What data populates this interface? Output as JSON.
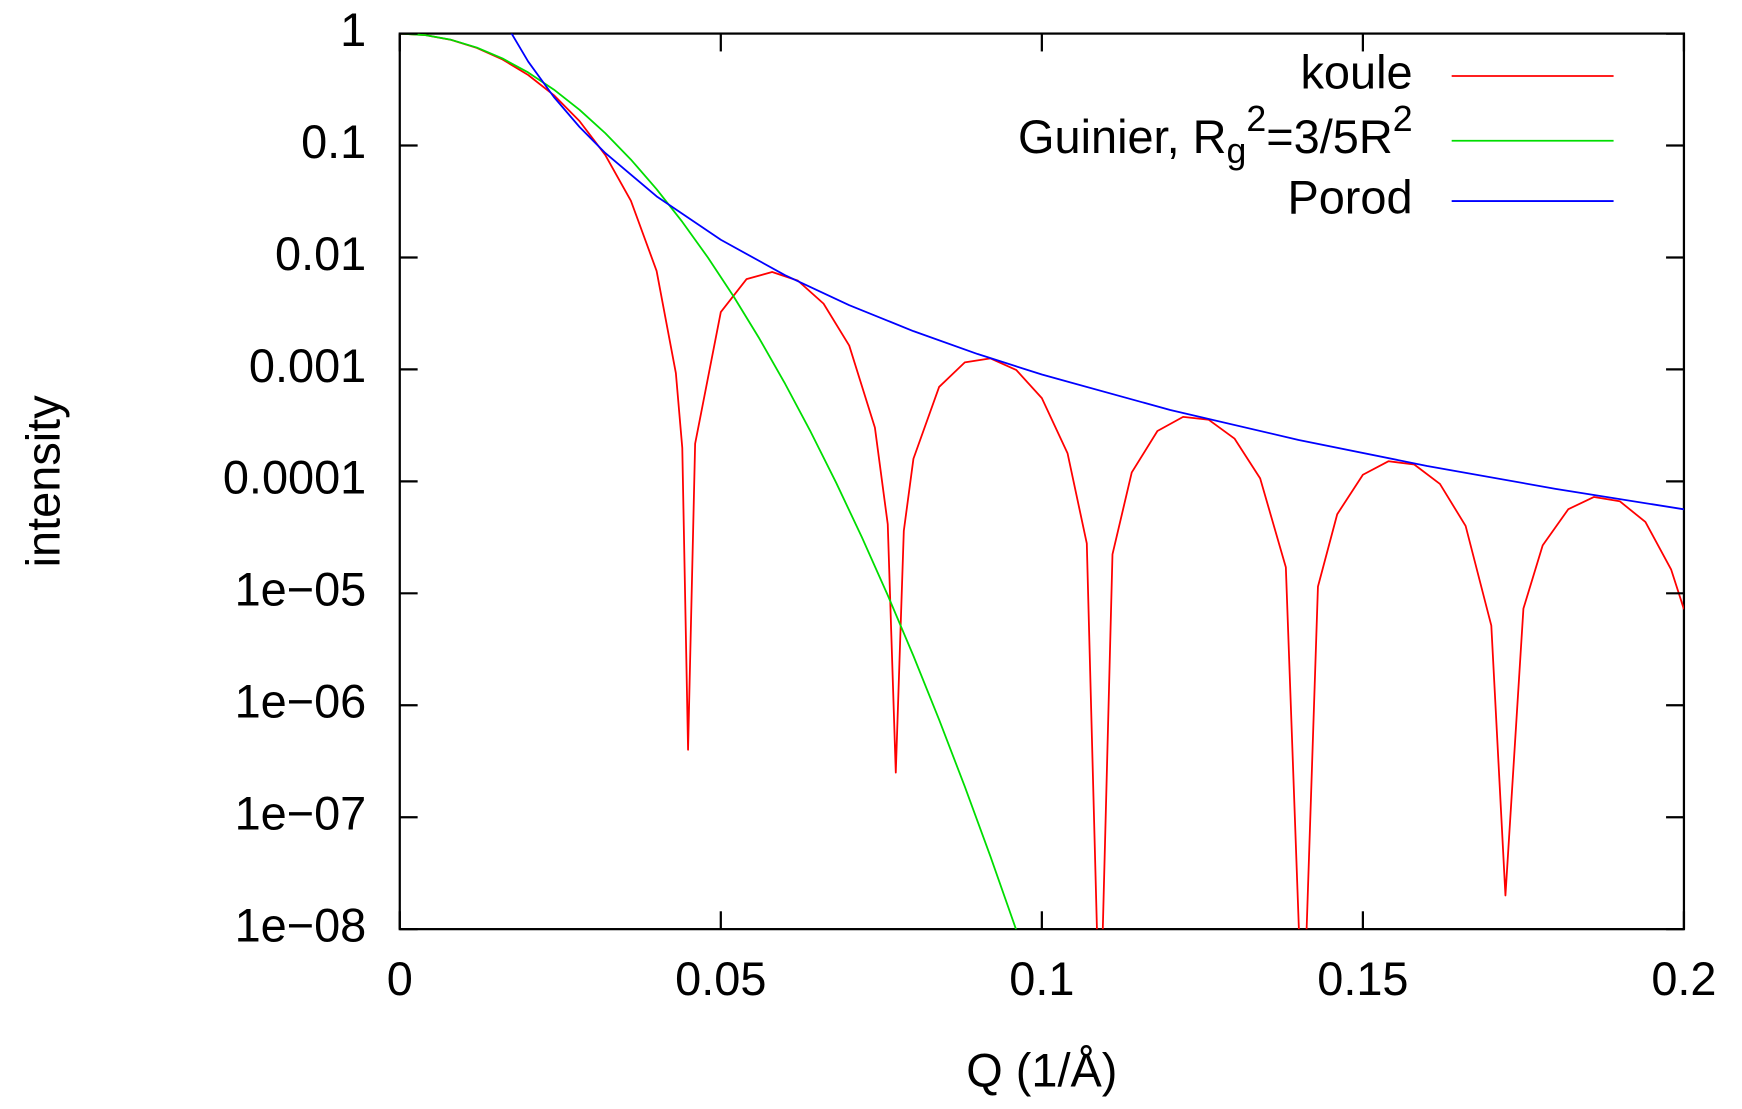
{
  "chart_data": {
    "type": "line",
    "xlabel": "Q (1/Å)",
    "ylabel": "intensity",
    "xlim": [
      0,
      0.2
    ],
    "xticks": [
      0,
      0.05,
      0.1,
      0.15,
      0.2
    ],
    "ylim": [
      1e-08,
      1
    ],
    "yticks": [
      {
        "value": 1e-08,
        "label": "1e−08"
      },
      {
        "value": 1e-07,
        "label": "1e−07"
      },
      {
        "value": 1e-06,
        "label": "1e−06"
      },
      {
        "value": 1e-05,
        "label": "1e−05"
      },
      0.0001,
      0.001,
      0.01,
      0.1,
      1
    ],
    "ylog": true,
    "grid": false,
    "legend": "top-right",
    "series": [
      {
        "name": "koule",
        "color": "#ff0000",
        "x": [
          0,
          0.004,
          0.008,
          0.012,
          0.016,
          0.02,
          0.024,
          0.028,
          0.032,
          0.036,
          0.04,
          0.043,
          0.044,
          0.0449,
          0.046,
          0.05,
          0.054,
          0.058,
          0.062,
          0.066,
          0.07,
          0.074,
          0.076,
          0.07725,
          0.0785,
          0.08,
          0.084,
          0.088,
          0.092,
          0.096,
          0.1,
          0.104,
          0.107,
          0.10904,
          0.111,
          0.114,
          0.118,
          0.122,
          0.126,
          0.13,
          0.134,
          0.138,
          0.14066,
          0.143,
          0.146,
          0.15,
          0.154,
          0.158,
          0.162,
          0.166,
          0.17,
          0.1722,
          0.175,
          0.178,
          0.182,
          0.186,
          0.19,
          0.194,
          0.198,
          0.2
        ],
        "values": [
          1,
          0.9684,
          0.8788,
          0.7451,
          0.5873,
          0.4265,
          0.2816,
          0.1651,
          0.08244,
          0.03209,
          0.007583,
          0.0009278,
          0.0001991,
          4e-07,
          0.0002169,
          0.003255,
          0.006403,
          0.007416,
          0.006213,
          0.003868,
          0.001633,
          0.0003018,
          4.141e-05,
          2.5e-07,
          3.609e-05,
          0.0001592,
          0.0006972,
          0.001156,
          0.001254,
          0.0009899,
          0.0005541,
          0.0001783,
          2.79e-05,
          1e-09,
          2.228e-05,
          0.0001201,
          0.0002819,
          0.0003768,
          0.0003548,
          0.0002413,
          0.0001063,
          1.709e-05,
          1e-09,
          1.148e-05,
          5.087e-05,
          0.0001146,
          0.0001513,
          0.0001415,
          9.49e-05,
          3.997e-05,
          5.15e-06,
          2e-08,
          7.294e-06,
          2.679e-05,
          5.646e-05,
          7.257e-05,
          6.644e-05,
          4.336e-05,
          1.635e-05,
          7.208e-06
        ]
      },
      {
        "name": "Guinier, R_g^2=3/5R^2",
        "color": "#00dd00",
        "x": [
          0,
          0.004,
          0.008,
          0.012,
          0.016,
          0.02,
          0.024,
          0.028,
          0.032,
          0.036,
          0.04,
          0.044,
          0.048,
          0.052,
          0.056,
          0.06,
          0.064,
          0.068,
          0.072,
          0.076,
          0.08,
          0.084,
          0.088,
          0.092,
          0.096
        ],
        "values": [
          1,
          0.9685,
          0.8799,
          0.7498,
          0.5993,
          0.4493,
          0.316,
          0.2085,
          0.129,
          0.07489,
          0.04076,
          0.02081,
          0.00997,
          0.00448,
          0.001888,
          0.0007466,
          0.0002769,
          9.63e-05,
          3.143e-05,
          9.61e-06,
          2.76e-06,
          7.43e-07,
          1.877e-07,
          4.45e-08,
          9.89e-09
        ]
      },
      {
        "name": "Porod",
        "color": "#0000ff",
        "x": [
          0.016,
          0.02,
          0.024,
          0.028,
          0.032,
          0.04,
          0.05,
          0.06,
          0.07,
          0.08,
          0.09,
          0.1,
          0.12,
          0.14,
          0.16,
          0.18,
          0.2
        ],
        "values": [
          1.373,
          0.5625,
          0.2713,
          0.1464,
          0.08583,
          0.03516,
          0.0144,
          0.006944,
          0.003748,
          0.002197,
          0.001372,
          0.0009,
          0.000434,
          0.0002343,
          0.0001373,
          8.573e-05,
          5.625e-05
        ]
      }
    ]
  }
}
